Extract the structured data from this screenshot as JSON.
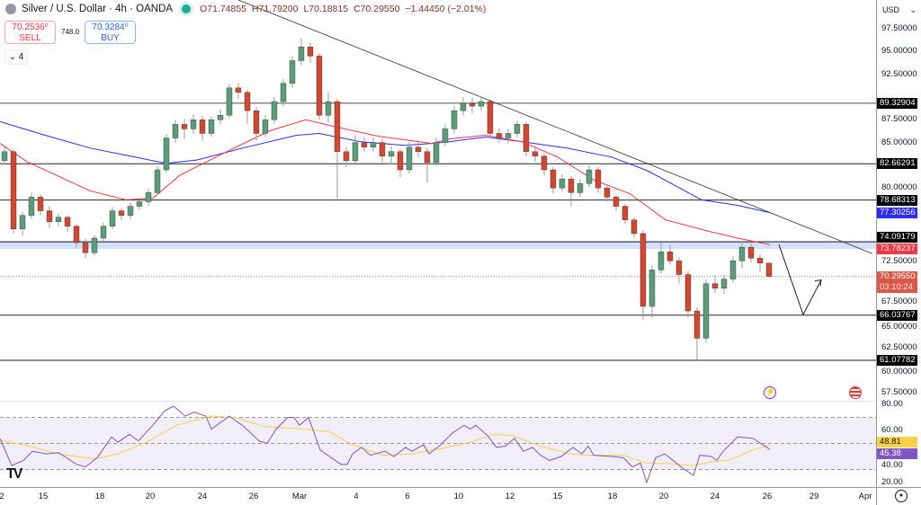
{
  "header": {
    "symbol_title": "Silver / U.S. Dollar · 4h · OANDA",
    "open": "O71.74855",
    "high": "H71.79200",
    "low": "L70.18815",
    "close": "C70.29550",
    "change": "−1.44450 (−2.01%)",
    "market_status_color": "#22ab94"
  },
  "trade": {
    "sell_price": "70.2536⁰",
    "sell_label": "SELL",
    "spread": "748.0",
    "buy_price": "70.3284⁰",
    "buy_label": "BUY"
  },
  "indicators_toggle": "4",
  "currency": "USD",
  "colors": {
    "up": "#5b9c79",
    "down": "#d1472f",
    "ma_fast": "#f23645",
    "ma_slow": "#2c2cf2",
    "rsi": "#7e57c2",
    "rsi_ma": "#f7d147",
    "zone": "#c9d9fb"
  },
  "chart_data": {
    "type": "candlestick",
    "price_axis_ticks": [
      "97.50000",
      "95.00000",
      "92.50000",
      "87.50000",
      "85.00000",
      "80.00000",
      "72.50000",
      "67.50000",
      "65.00000",
      "62.50000",
      "60.00000",
      "57.50000"
    ],
    "price_axis_tick_values": [
      97.5,
      95,
      92.5,
      87.5,
      85,
      80,
      72.5,
      67.5,
      65,
      62.5,
      60,
      57.5
    ],
    "x_axis_labels": [
      "2",
      "15",
      "18",
      "20",
      "24",
      "26",
      "Mar",
      "4",
      "6",
      "10",
      "12",
      "15",
      "18",
      "20",
      "24",
      "26",
      "29",
      "Apr"
    ],
    "ohlc": [
      [
        83.0,
        84.5,
        82.6,
        84.0
      ],
      [
        84.0,
        84.3,
        75.0,
        75.5
      ],
      [
        75.5,
        77.4,
        74.8,
        77.0
      ],
      [
        77.0,
        79.5,
        76.6,
        79.0
      ],
      [
        79.0,
        79.3,
        77.0,
        77.5
      ],
      [
        77.5,
        78.0,
        75.6,
        76.3
      ],
      [
        76.3,
        77.2,
        75.8,
        76.8
      ],
      [
        76.8,
        77.0,
        75.2,
        75.8
      ],
      [
        75.8,
        76.0,
        73.4,
        74.0
      ],
      [
        74.0,
        74.4,
        72.3,
        72.9
      ],
      [
        72.9,
        74.8,
        72.6,
        74.5
      ],
      [
        74.5,
        76.2,
        74.1,
        75.8
      ],
      [
        75.8,
        77.9,
        75.5,
        77.5
      ],
      [
        77.5,
        77.8,
        76.5,
        77.0
      ],
      [
        77.0,
        78.4,
        76.6,
        78.0
      ],
      [
        78.0,
        78.9,
        77.6,
        78.5
      ],
      [
        78.5,
        79.9,
        78.1,
        79.5
      ],
      [
        79.5,
        82.4,
        79.2,
        82.0
      ],
      [
        82.0,
        85.9,
        81.7,
        85.5
      ],
      [
        85.5,
        87.5,
        85.0,
        87.0
      ],
      [
        87.0,
        87.6,
        85.4,
        86.5
      ],
      [
        86.5,
        88.1,
        85.9,
        87.5
      ],
      [
        87.5,
        87.9,
        85.2,
        86.0
      ],
      [
        86.0,
        87.9,
        85.6,
        87.5
      ],
      [
        87.5,
        88.6,
        87.0,
        88.0
      ],
      [
        88.0,
        91.4,
        87.7,
        91.0
      ],
      [
        91.0,
        91.5,
        89.8,
        90.5
      ],
      [
        90.5,
        90.8,
        87.0,
        88.5
      ],
      [
        88.5,
        88.9,
        85.2,
        86.0
      ],
      [
        86.0,
        88.0,
        85.6,
        87.5
      ],
      [
        87.5,
        90.0,
        87.1,
        89.5
      ],
      [
        89.5,
        92.0,
        89.0,
        91.5
      ],
      [
        91.5,
        94.5,
        91.0,
        94.0
      ],
      [
        94.0,
        96.4,
        93.5,
        95.5
      ],
      [
        95.5,
        96.0,
        93.8,
        94.5
      ],
      [
        94.5,
        94.8,
        87.5,
        88.0
      ],
      [
        88.0,
        90.5,
        87.2,
        89.5
      ],
      [
        89.5,
        89.8,
        78.8,
        84.0
      ],
      [
        84.0,
        84.5,
        82.3,
        83.0
      ],
      [
        83.0,
        85.8,
        82.7,
        85.0
      ],
      [
        85.0,
        85.6,
        84.0,
        84.5
      ],
      [
        84.5,
        85.6,
        84.0,
        85.0
      ],
      [
        85.0,
        85.4,
        82.8,
        83.5
      ],
      [
        83.5,
        84.6,
        82.6,
        84.0
      ],
      [
        84.0,
        84.3,
        81.2,
        82.0
      ],
      [
        82.0,
        85.0,
        81.6,
        84.5
      ],
      [
        84.5,
        85.2,
        83.4,
        84.0
      ],
      [
        84.0,
        84.4,
        80.6,
        82.8
      ],
      [
        82.8,
        85.5,
        82.4,
        85.0
      ],
      [
        85.0,
        87.0,
        84.6,
        86.5
      ],
      [
        86.5,
        89.0,
        86.0,
        88.5
      ],
      [
        88.5,
        90.0,
        88.0,
        89.3
      ],
      [
        89.3,
        89.9,
        88.2,
        89.0
      ],
      [
        89.0,
        89.9,
        88.5,
        89.5
      ],
      [
        89.5,
        89.7,
        85.5,
        86.0
      ],
      [
        86.0,
        86.6,
        85.0,
        85.5
      ],
      [
        85.5,
        86.5,
        84.9,
        86.0
      ],
      [
        86.0,
        87.4,
        85.6,
        87.0
      ],
      [
        87.0,
        87.3,
        83.5,
        84.0
      ],
      [
        84.0,
        84.6,
        82.9,
        83.5
      ],
      [
        83.5,
        83.8,
        81.4,
        82.0
      ],
      [
        82.0,
        82.3,
        79.4,
        80.0
      ],
      [
        80.0,
        81.5,
        79.6,
        81.0
      ],
      [
        81.0,
        81.3,
        78.0,
        79.5
      ],
      [
        79.5,
        81.0,
        79.0,
        80.5
      ],
      [
        80.5,
        82.5,
        80.1,
        82.0
      ],
      [
        82.0,
        82.3,
        79.5,
        80.0
      ],
      [
        80.0,
        80.4,
        78.5,
        79.0
      ],
      [
        79.0,
        79.3,
        77.5,
        78.0
      ],
      [
        78.0,
        78.3,
        76.0,
        76.5
      ],
      [
        76.5,
        76.8,
        74.6,
        75.0
      ],
      [
        75.0,
        75.3,
        65.5,
        67.0
      ],
      [
        67.0,
        71.5,
        65.8,
        71.0
      ],
      [
        71.0,
        74.0,
        70.6,
        73.0
      ],
      [
        73.0,
        73.8,
        71.6,
        72.0
      ],
      [
        72.0,
        72.4,
        69.5,
        70.5
      ],
      [
        70.5,
        70.9,
        65.8,
        66.5
      ],
      [
        66.5,
        66.9,
        61.1,
        63.5
      ],
      [
        63.5,
        70.0,
        63.0,
        69.5
      ],
      [
        69.5,
        70.4,
        68.5,
        69.0
      ],
      [
        69.0,
        70.5,
        68.4,
        70.0
      ],
      [
        70.0,
        72.5,
        69.6,
        72.0
      ],
      [
        72.0,
        74.2,
        71.2,
        73.5
      ],
      [
        73.5,
        73.9,
        71.8,
        72.3
      ],
      [
        72.3,
        72.7,
        70.8,
        71.75
      ],
      [
        71.74855,
        71.792,
        70.18815,
        70.2955
      ]
    ],
    "ma_fast": [
      [
        -0.5,
        84.9
      ],
      [
        2.5,
        82.9
      ],
      [
        9.5,
        79.7
      ],
      [
        13.5,
        78.7
      ],
      [
        16.5,
        78.9
      ],
      [
        19.5,
        81.4
      ],
      [
        24.5,
        83.9
      ],
      [
        29.5,
        86.3
      ],
      [
        33.5,
        87.5
      ],
      [
        36.5,
        86.8
      ],
      [
        41.5,
        85.7
      ],
      [
        47.5,
        84.9
      ],
      [
        49.5,
        85.4
      ],
      [
        53.5,
        85.8
      ],
      [
        57.5,
        85.1
      ],
      [
        61.5,
        83.4
      ],
      [
        65.5,
        80.9
      ],
      [
        69.5,
        79.4
      ],
      [
        73.5,
        76.5
      ],
      [
        78.5,
        75.2
      ],
      [
        81.5,
        74.5
      ],
      [
        85.1,
        73.78237
      ]
    ],
    "ma_slow": [
      [
        -0.5,
        87.3
      ],
      [
        4.5,
        85.8
      ],
      [
        9.5,
        84.4
      ],
      [
        14.5,
        83.4
      ],
      [
        18,
        82.7
      ],
      [
        21.5,
        83.1
      ],
      [
        26.5,
        84.4
      ],
      [
        32.5,
        85.8
      ],
      [
        35,
        86.0
      ],
      [
        39.5,
        85.1
      ],
      [
        44.5,
        84.7
      ],
      [
        47.5,
        84.9
      ],
      [
        49.5,
        85.1
      ],
      [
        53.5,
        85.6
      ],
      [
        57.5,
        85.1
      ],
      [
        62.5,
        84.4
      ],
      [
        67.5,
        83.4
      ],
      [
        71.5,
        81.9
      ],
      [
        77.5,
        78.7
      ],
      [
        81.5,
        78.1
      ],
      [
        85.1,
        77.30256
      ]
    ],
    "horizontal_levels": [
      89.32904,
      82.66291,
      78.68313,
      74.09179,
      66.03767,
      61.07782
    ],
    "level_labels": [
      "89.32904",
      "82.66291",
      "78.68313",
      "74.09179",
      "66.03767",
      "61.07782"
    ],
    "support_zone": [
      73.3,
      74.2
    ],
    "trendline": [
      [
        26,
        100.66
      ],
      [
        96.5,
        72.8
      ]
    ],
    "projection": [
      [
        86.1,
        73.8
      ],
      [
        88.8,
        66.1
      ],
      [
        90.8,
        69.9
      ]
    ],
    "current_price": 70.2955,
    "current_price_label": "70.29550",
    "countdown": "03:10:24",
    "ma_slow_label": "77.30256",
    "ma_fast_label": "73.78237",
    "rsi": {
      "ticks": [
        "80.00",
        "60.00",
        "40.00",
        "20.00"
      ],
      "tick_values": [
        80,
        60,
        40,
        20
      ],
      "band": [
        30,
        70
      ],
      "value_label": "45.38",
      "ma_label": "48.81",
      "values": [
        [
          -0.5,
          53.8
        ],
        [
          0.8,
          33
        ],
        [
          2.1,
          37
        ],
        [
          3.1,
          44
        ],
        [
          4.7,
          42
        ],
        [
          6,
          43
        ],
        [
          8,
          34
        ],
        [
          9,
          32
        ],
        [
          10.3,
          39
        ],
        [
          10.9,
          45
        ],
        [
          11.9,
          55
        ],
        [
          12.6,
          51
        ],
        [
          13.9,
          57
        ],
        [
          14.9,
          52
        ],
        [
          16.5,
          64
        ],
        [
          17.8,
          75
        ],
        [
          18.8,
          78.6
        ],
        [
          20.1,
          71
        ],
        [
          21.1,
          74
        ],
        [
          22.4,
          71
        ],
        [
          23,
          61
        ],
        [
          24,
          66
        ],
        [
          25,
          71
        ],
        [
          26.6,
          63
        ],
        [
          28.3,
          52
        ],
        [
          29.2,
          50
        ],
        [
          30.2,
          61
        ],
        [
          31.5,
          70
        ],
        [
          32.2,
          70
        ],
        [
          32.8,
          64
        ],
        [
          33.8,
          70
        ],
        [
          35.1,
          45
        ],
        [
          37.4,
          34
        ],
        [
          38.1,
          34
        ],
        [
          38.7,
          42
        ],
        [
          39.7,
          47
        ],
        [
          40.7,
          41
        ],
        [
          42.3,
          44
        ],
        [
          43.3,
          40
        ],
        [
          44.6,
          47
        ],
        [
          45.3,
          44
        ],
        [
          46.6,
          49
        ],
        [
          47.2,
          42
        ],
        [
          48.5,
          49
        ],
        [
          49.8,
          58
        ],
        [
          51.1,
          64
        ],
        [
          51.8,
          61
        ],
        [
          52.4,
          64
        ],
        [
          53.7,
          56
        ],
        [
          54.7,
          47
        ],
        [
          55.7,
          48
        ],
        [
          56.7,
          54
        ],
        [
          57.7,
          44
        ],
        [
          58.7,
          47
        ],
        [
          59.6,
          41
        ],
        [
          60.6,
          37
        ],
        [
          61.9,
          40
        ],
        [
          63.2,
          47
        ],
        [
          64.2,
          42
        ],
        [
          64.9,
          48
        ],
        [
          65.5,
          41
        ],
        [
          67.5,
          40
        ],
        [
          68.8,
          39
        ],
        [
          69.8,
          32
        ],
        [
          70.7,
          35
        ],
        [
          71.4,
          20
        ],
        [
          72.4,
          39
        ],
        [
          73.4,
          42
        ],
        [
          74.7,
          35
        ],
        [
          75.6,
          30
        ],
        [
          76.6,
          25.5
        ],
        [
          77.3,
          41
        ],
        [
          78.6,
          40
        ],
        [
          79.2,
          37
        ],
        [
          79.9,
          44
        ],
        [
          81.5,
          55
        ],
        [
          83.2,
          54
        ],
        [
          84.1,
          50
        ],
        [
          85.1,
          45.38
        ]
      ],
      "ma": [
        [
          -0.5,
          52.4
        ],
        [
          2.8,
          48
        ],
        [
          6,
          42
        ],
        [
          10,
          38
        ],
        [
          12.6,
          42
        ],
        [
          15.8,
          51
        ],
        [
          19.1,
          64
        ],
        [
          23,
          71
        ],
        [
          25.6,
          70
        ],
        [
          28.9,
          63
        ],
        [
          33.5,
          61
        ],
        [
          36.1,
          59
        ],
        [
          38.7,
          49
        ],
        [
          42,
          41
        ],
        [
          45.3,
          42
        ],
        [
          48.5,
          46
        ],
        [
          51.8,
          51
        ],
        [
          54.4,
          57
        ],
        [
          56.4,
          56
        ],
        [
          59.6,
          48
        ],
        [
          62.9,
          42
        ],
        [
          64.9,
          41
        ],
        [
          68.8,
          41
        ],
        [
          71.4,
          35
        ],
        [
          74,
          34.5
        ],
        [
          76.6,
          33
        ],
        [
          78.6,
          36
        ],
        [
          80.5,
          37
        ],
        [
          83.2,
          45
        ],
        [
          85.1,
          48.81
        ]
      ]
    }
  }
}
